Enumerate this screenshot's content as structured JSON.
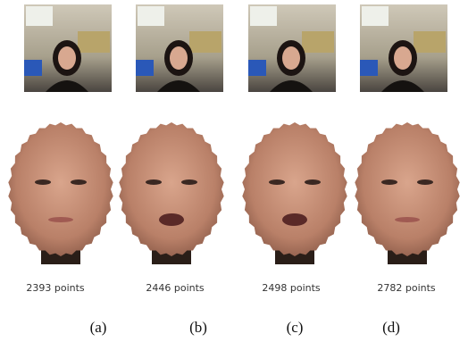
{
  "panels": [
    {
      "points_label": "2393 points",
      "caption": "(a)"
    },
    {
      "points_label": "2446 points",
      "caption": "(b)"
    },
    {
      "points_label": "2498 points",
      "caption": "(c)"
    },
    {
      "points_label": "2782 points",
      "caption": "(d)"
    }
  ]
}
